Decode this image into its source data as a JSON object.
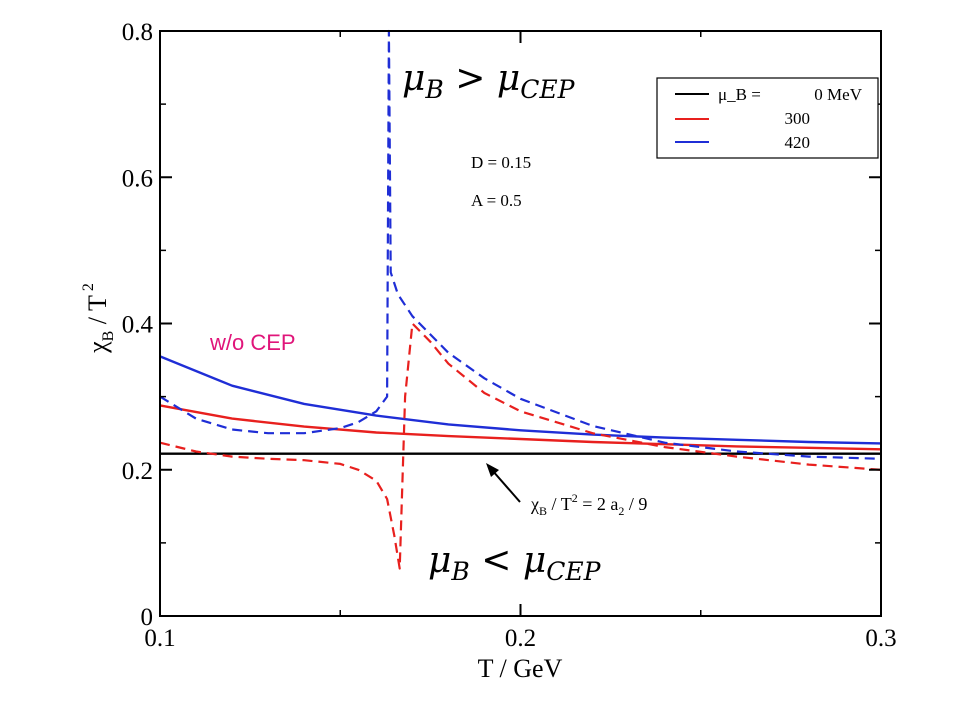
{
  "chart_data": {
    "type": "line",
    "xlabel": "T / GeV",
    "ylabel_main": "χ",
    "ylabel_sub": "B",
    "ylabel_rest": " / T",
    "ylabel_sup": "2",
    "xlim": [
      0.1,
      0.3
    ],
    "ylim": [
      0,
      0.8
    ],
    "x_ticks": [
      0.1,
      0.2,
      0.3
    ],
    "x_tick_labels": [
      "0.1",
      "0.2",
      "0.3"
    ],
    "y_ticks": [
      0,
      0.2,
      0.4,
      0.6,
      0.8
    ],
    "y_tick_labels": [
      "0",
      "0.2",
      "0.4",
      "0.6",
      "0.8"
    ],
    "x_minor_ticks": [
      0.15,
      0.25
    ],
    "y_minor_ticks": [
      0.1,
      0.3,
      0.5,
      0.7
    ],
    "grid": false,
    "legend": {
      "placement": "top-right",
      "header": "μ_B =",
      "entries": [
        {
          "label": "0 MeV",
          "color": "#000000"
        },
        {
          "label": "300",
          "color": "#e8201e"
        },
        {
          "label": "420",
          "color": "#1f2ed6"
        }
      ]
    },
    "series": [
      {
        "color": "#000000",
        "style": "solid",
        "x": [
          0.1,
          0.3
        ],
        "y": [
          0.222,
          0.222
        ]
      },
      {
        "color": "#e8201e",
        "style": "solid",
        "x": [
          0.1,
          0.12,
          0.14,
          0.16,
          0.18,
          0.2,
          0.22,
          0.24,
          0.26,
          0.28,
          0.3
        ],
        "y": [
          0.288,
          0.27,
          0.259,
          0.251,
          0.246,
          0.242,
          0.238,
          0.235,
          0.232,
          0.23,
          0.228
        ]
      },
      {
        "color": "#1f2ed6",
        "style": "solid",
        "x": [
          0.1,
          0.12,
          0.14,
          0.16,
          0.18,
          0.2,
          0.22,
          0.24,
          0.26,
          0.28,
          0.3
        ],
        "y": [
          0.355,
          0.315,
          0.29,
          0.274,
          0.262,
          0.254,
          0.248,
          0.244,
          0.241,
          0.238,
          0.236
        ]
      },
      {
        "color": "#e8201e",
        "style": "dashed",
        "x": [
          0.1,
          0.11,
          0.12,
          0.13,
          0.14,
          0.15,
          0.155,
          0.16,
          0.163,
          0.165,
          0.1665,
          0.168,
          0.17,
          0.175,
          0.18,
          0.19,
          0.2,
          0.22,
          0.24,
          0.26,
          0.28,
          0.3
        ],
        "y": [
          0.237,
          0.225,
          0.218,
          0.215,
          0.213,
          0.208,
          0.2,
          0.185,
          0.16,
          0.11,
          0.065,
          0.3,
          0.4,
          0.375,
          0.345,
          0.305,
          0.28,
          0.25,
          0.231,
          0.218,
          0.207,
          0.2
        ]
      },
      {
        "color": "#1f2ed6",
        "style": "dashed",
        "x": [
          0.1,
          0.11,
          0.12,
          0.13,
          0.14,
          0.15,
          0.155,
          0.16,
          0.163,
          0.1635,
          0.164,
          0.166,
          0.17,
          0.175,
          0.18,
          0.19,
          0.2,
          0.22,
          0.24,
          0.26,
          0.28,
          0.3
        ],
        "y": [
          0.3,
          0.27,
          0.255,
          0.25,
          0.25,
          0.257,
          0.265,
          0.28,
          0.3,
          0.8,
          0.47,
          0.44,
          0.41,
          0.385,
          0.36,
          0.325,
          0.297,
          0.26,
          0.237,
          0.225,
          0.218,
          0.215
        ]
      }
    ],
    "annotations": {
      "params": [
        "D = 0.15",
        "A = 0.5"
      ],
      "upper": {
        "main": "μ",
        "sub1": "B",
        "op": " > ",
        "main2": "μ",
        "sub2": "CEP"
      },
      "lower": {
        "main": "μ",
        "sub1": "B",
        "op": " < ",
        "main2": "μ",
        "sub2": "CEP"
      },
      "wo_cep": "w/o CEP",
      "wo_cep_color": "#e0157a",
      "formula": {
        "chi": "χ",
        "chi_sub": "B",
        "mid": " / T",
        "t_sup": "2",
        "rhs": " = 2 a",
        "a_sub": "2",
        "tail": " / 9"
      }
    }
  }
}
